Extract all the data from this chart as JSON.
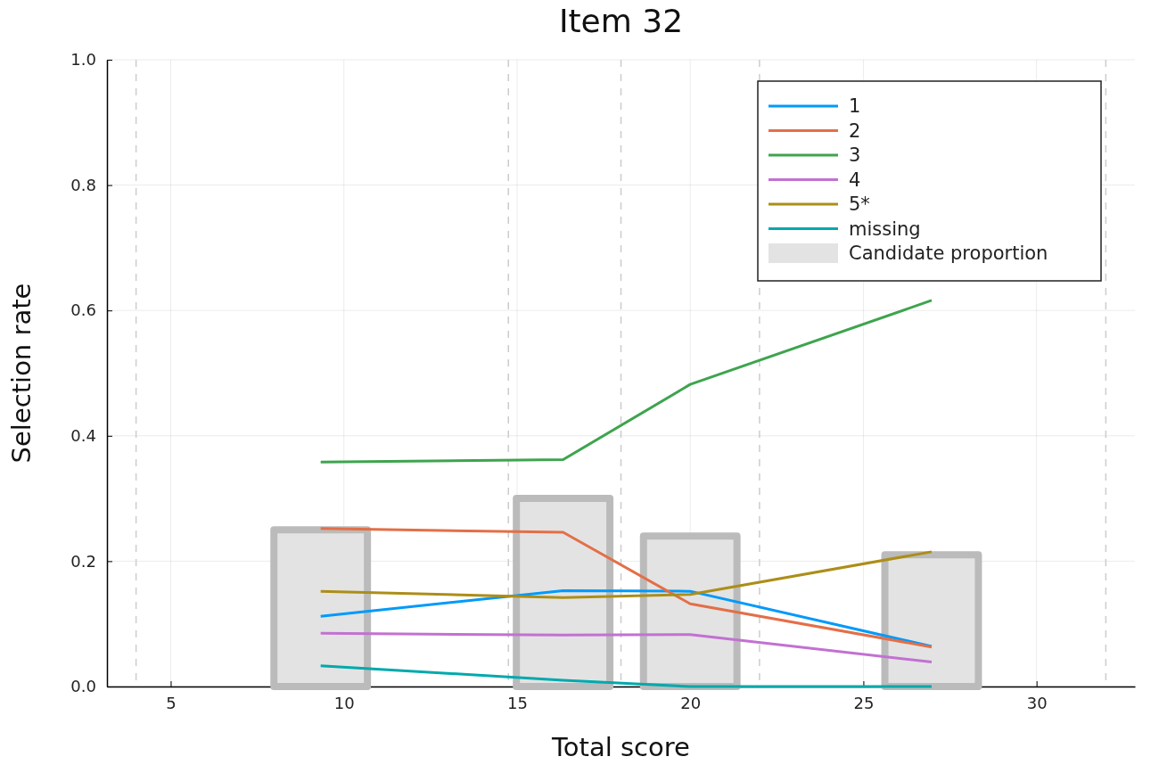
{
  "chart_data": {
    "type": "line",
    "title": "Item 32",
    "xlabel": "Total score",
    "ylabel": "Selection rate",
    "xlim": [
      3.16,
      32.84
    ],
    "xticks": [
      5,
      10,
      15,
      20,
      25,
      30
    ],
    "ylim": [
      0,
      1
    ],
    "yticks": [
      {
        "value": 0,
        "label": "0.0"
      },
      {
        "value": 0.2,
        "label": "0.2"
      },
      {
        "value": 0.4,
        "label": "0.4"
      },
      {
        "value": 0.6,
        "label": "0.6"
      },
      {
        "value": 0.8,
        "label": "0.8"
      },
      {
        "value": 1,
        "label": "1.0"
      }
    ],
    "grid": true,
    "legend": "top right",
    "marker": "none",
    "line_style": "solid",
    "x": [
      9.33,
      16.33,
      20,
      26.97
    ],
    "series": [
      {
        "name": "1",
        "color": "#009afa",
        "values": [
          0.112,
          0.153,
          0.152,
          0.064
        ]
      },
      {
        "name": "2",
        "color": "#e36f47",
        "values": [
          0.252,
          0.246,
          0.132,
          0.063
        ]
      },
      {
        "name": "3",
        "color": "#3ea44e",
        "values": [
          0.358,
          0.362,
          0.482,
          0.616
        ]
      },
      {
        "name": "4",
        "color": "#c271d2",
        "values": [
          0.085,
          0.082,
          0.083,
          0.039
        ]
      },
      {
        "name": "5*",
        "color": "#ac8e18",
        "values": [
          0.152,
          0.142,
          0.147,
          0.215
        ]
      },
      {
        "name": "missing",
        "color": "#00a9ad",
        "values": [
          0.033,
          0.01,
          0,
          0
        ]
      },
      {
        "name": "Candidate proportion",
        "type": "bar",
        "color": "#e3e3e3",
        "values": [
          0.25,
          0.3,
          0.24,
          0.21
        ]
      }
    ],
    "ref_lines": [
      {
        "axis": "x",
        "value": 4,
        "color": "#cccccc",
        "line_style": "dashed"
      },
      {
        "axis": "x",
        "value": 14.75,
        "color": "#cccccc",
        "line_style": "dashed"
      },
      {
        "axis": "x",
        "value": 18,
        "color": "#cccccc",
        "line_style": "dashed"
      },
      {
        "axis": "x",
        "value": 22,
        "color": "#cccccc",
        "line_style": "dashed"
      },
      {
        "axis": "x",
        "value": 32,
        "color": "#cccccc",
        "line_style": "dashed"
      }
    ]
  }
}
